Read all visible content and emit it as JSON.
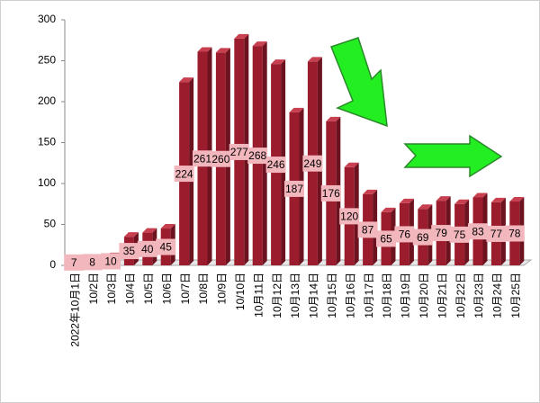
{
  "chart_data": {
    "type": "bar",
    "categories": [
      "2022年10月1日",
      "10/2日",
      "10/3日",
      "10/4日",
      "10/5日",
      "10/6日",
      "10/7日",
      "10/8日",
      "10/9日",
      "10/10日",
      "10月11日",
      "10月12日",
      "10月13日",
      "10月14日",
      "10月15日",
      "10月16日",
      "10月17日",
      "10月18日",
      "10月19日",
      "10月20日",
      "10月21日",
      "10月22日",
      "10月23日",
      "10月24日",
      "10月25日"
    ],
    "values": [
      7,
      8,
      10,
      35,
      40,
      45,
      224,
      261,
      260,
      277,
      268,
      246,
      187,
      249,
      176,
      120,
      87,
      65,
      76,
      69,
      79,
      75,
      83,
      77,
      78
    ],
    "color": "#9b1c2c",
    "ylim": [
      0,
      300
    ],
    "yticks": [
      0,
      50,
      100,
      150,
      200,
      250,
      300
    ],
    "grid": false
  }
}
